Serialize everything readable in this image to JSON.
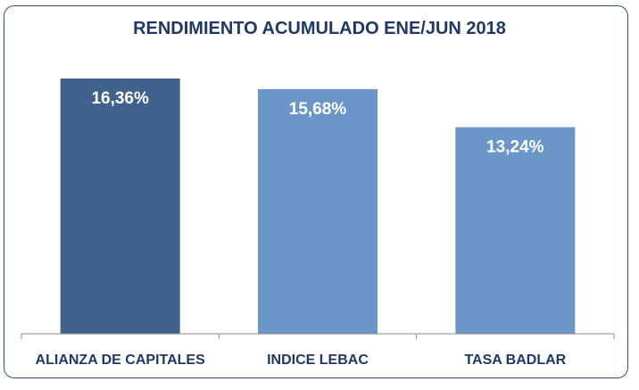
{
  "chart_data": {
    "type": "bar",
    "title": "RENDIMIENTO ACUMULADO ENE/JUN 2018",
    "categories": [
      "ALIANZA DE CAPITALES",
      "INDICE LEBAC",
      "TASA BADLAR"
    ],
    "values": [
      16.36,
      15.68,
      13.24
    ],
    "value_labels": [
      "16,36%",
      "15,68%",
      "13,24%"
    ],
    "colors": [
      "#3f618c",
      "#6b96c8",
      "#6b96c8"
    ],
    "ylim": [
      0,
      17.5
    ],
    "grid": false,
    "legend": "none"
  }
}
